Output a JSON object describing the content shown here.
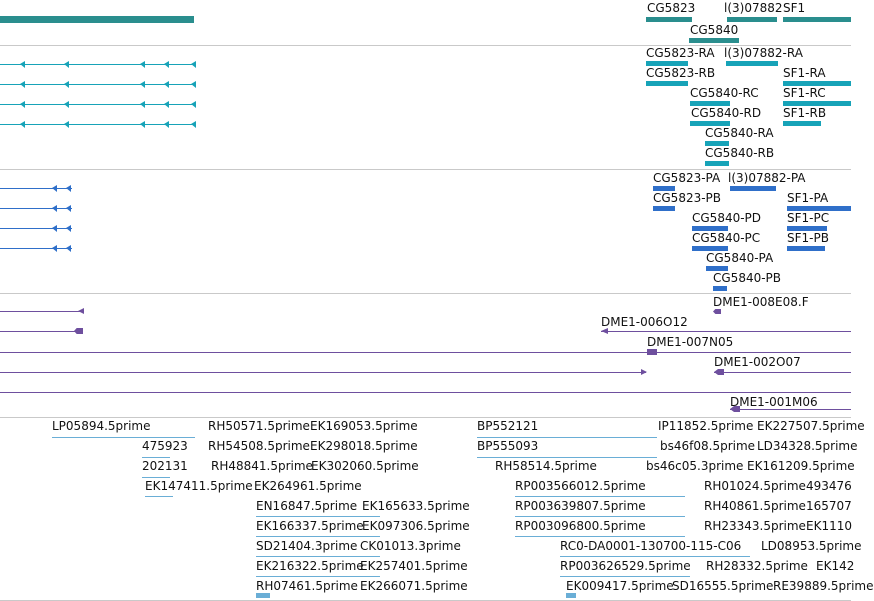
{
  "colors": {
    "gene": "#2a8e8e",
    "transcript": "#17a3b8",
    "cds": "#2f6fc9",
    "clone": "#6e4f9e",
    "est": "#6aaed6",
    "divider": "#c9c9c9"
  },
  "genes": [
    {
      "label": "CG5823"
    },
    {
      "label": "l(3)07882"
    },
    {
      "label": "SF1"
    },
    {
      "label": "CG5840"
    }
  ],
  "transcripts": [
    {
      "label": "CG5823-RA"
    },
    {
      "label": "l(3)07882-RA"
    },
    {
      "label": "CG5823-RB"
    },
    {
      "label": "SF1-RA"
    },
    {
      "label": "CG5840-RC"
    },
    {
      "label": "SF1-RC"
    },
    {
      "label": "CG5840-RD"
    },
    {
      "label": "SF1-RB"
    },
    {
      "label": "CG5840-RA"
    },
    {
      "label": "CG5840-RB"
    }
  ],
  "cds": [
    {
      "label": "CG5823-PA"
    },
    {
      "label": "l(3)07882-PA"
    },
    {
      "label": "CG5823-PB"
    },
    {
      "label": "SF1-PA"
    },
    {
      "label": "CG5840-PD"
    },
    {
      "label": "SF1-PC"
    },
    {
      "label": "CG5840-PC"
    },
    {
      "label": "SF1-PB"
    },
    {
      "label": "CG5840-PA"
    },
    {
      "label": "CG5840-PB"
    }
  ],
  "clones": [
    {
      "label": "DME1-008E08.F"
    },
    {
      "label": "DME1-006O12"
    },
    {
      "label": "DME1-007N05"
    },
    {
      "label": "DME1-002O07"
    },
    {
      "label": "DME1-001M06"
    }
  ],
  "ests": [
    {
      "label": "LP05894.5prime"
    },
    {
      "label": "RH50571.5prime"
    },
    {
      "label": "EK169053.5prime"
    },
    {
      "label": "BP552121"
    },
    {
      "label": "IP11852.5prime"
    },
    {
      "label": "EK227507.5prime"
    },
    {
      "label": "475923"
    },
    {
      "label": "RH54508.5prime"
    },
    {
      "label": "EK298018.5prime"
    },
    {
      "label": "BP555093"
    },
    {
      "label": "bs46f08.5prime"
    },
    {
      "label": "LD34328.5prime"
    },
    {
      "label": "202131"
    },
    {
      "label": "RH48841.5prime"
    },
    {
      "label": "EK302060.5prime"
    },
    {
      "label": "RH58514.5prime"
    },
    {
      "label": "bs46c05.3prime"
    },
    {
      "label": "EK161209.5prime"
    },
    {
      "label": "EK147411.5prime"
    },
    {
      "label": "EK264961.5prime"
    },
    {
      "label": "RP003566012.5prime"
    },
    {
      "label": "RH01024.5prime"
    },
    {
      "label": "493476"
    },
    {
      "label": "EN16847.5prime"
    },
    {
      "label": "EK165633.5prime"
    },
    {
      "label": "RP003639807.5prime"
    },
    {
      "label": "RH40861.5prime"
    },
    {
      "label": "165707"
    },
    {
      "label": "EK166337.5prime"
    },
    {
      "label": "EK097306.5prime"
    },
    {
      "label": "RP003096800.5prime"
    },
    {
      "label": "RH23343.5prime"
    },
    {
      "label": "EK1110"
    },
    {
      "label": "SD21404.3prime"
    },
    {
      "label": "CK01013.3prime"
    },
    {
      "label": "RC0-DA0001-130700-115-C06"
    },
    {
      "label": "LD08953.5prime"
    },
    {
      "label": "EK216322.5prime"
    },
    {
      "label": "EK257401.5prime"
    },
    {
      "label": "RP003626529.5prime"
    },
    {
      "label": "RH28332.5prime"
    },
    {
      "label": "EK142"
    },
    {
      "label": "RH07461.5prime"
    },
    {
      "label": "EK266071.5prime"
    },
    {
      "label": "EK009417.5prime"
    },
    {
      "label": "SD16555.5prime"
    },
    {
      "label": "RE39889.5prime"
    }
  ]
}
